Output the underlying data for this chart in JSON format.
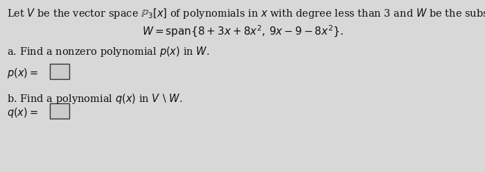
{
  "bg_color": "#d8d8d8",
  "text_color": "#111111",
  "title_line": "Let $V$ be the vector space $\\mathbb{P}_3[x]$ of polynomials in $x$ with degree less than 3 and $W$ be the subspace",
  "w_def": "$W = \\mathrm{span}\\{8 + 3x + 8x^2,\\, 9x - 9 - 8x^2\\}.$",
  "part_a_label": "a. Find a nonzero polynomial $p(x)$ in $W$.",
  "part_a_eq": "$p(x) =$",
  "part_b_label": "b. Find a polynomial $q(x)$ in $V \\setminus W$.",
  "part_b_eq": "$q(x) =$",
  "box_color": "#e8e8e8",
  "box_edge_color": "#333333",
  "figsize": [
    7.0,
    2.48
  ],
  "dpi": 100
}
